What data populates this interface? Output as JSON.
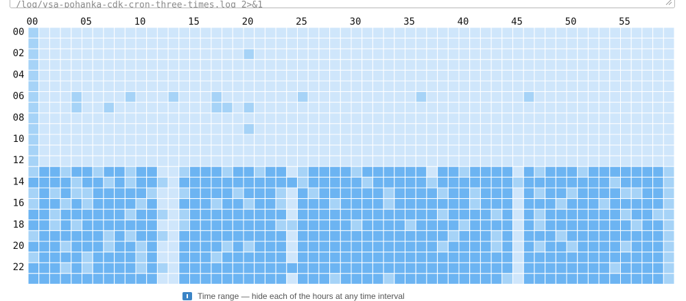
{
  "command": {
    "text": "/log/vsa-pohanka-cdk-cron-three-times.log 2>&1"
  },
  "legend_hint": {
    "text": "Time range — hide each of the hours at any time interval"
  },
  "colors": {
    "level0": "#cfe6fb",
    "level1": "#a6d3f7",
    "level2": "#6cb4f2",
    "gridline": "#ffffff"
  },
  "chart_data": {
    "type": "heatmap",
    "title": "",
    "xlabel": "",
    "ylabel": "",
    "x_tick_labels": [
      "00",
      "05",
      "10",
      "15",
      "20",
      "25",
      "30",
      "35",
      "40",
      "45",
      "50",
      "55"
    ],
    "y_tick_labels": [
      "00",
      "02",
      "04",
      "06",
      "08",
      "10",
      "12",
      "14",
      "16",
      "18",
      "20",
      "22"
    ],
    "minutes": 60,
    "hours": 24,
    "levels": [
      0,
      1,
      2
    ],
    "rows": [
      "100000000000000000000000000000000000000000000000000000000000",
      "100000000000000000000000000000000000000000000000000000000000",
      "100000000000000000001000000000000000000000000000000000000000",
      "100000000000000000000000000000000000000000000000000000000000",
      "100000000000000000000000000000000000000000000000000000000000",
      "100000000000000000000000000000000000000000000000000000000000",
      "100010000100010001000000010000000000100000000010000000000000",
      "100010010000000001101000000000000000000000000000000000000000",
      "100000000000000000000000000000000000000000000000000000000000",
      "100000000000000000001000000000000000000000000000000000000000",
      "100000000000000000000000000000000000000000000000000000000000",
      "100000000000000000000000000000000000000000000000000000000000",
      "100000000000000000000000000000000000000000000000000000000000",
      "122122122122001222122122012222122222202212222021222122222221",
      "222212212122102222222222212222212222212222222122222222122221",
      "121211222221001222212221021222222122221221222021221222211221",
      "122121222212002221221221022212222122222221222022212221222221",
      "221222222122101222222222022222222222221222212021222222212211",
      "221212222222001222222221122222122221222212222021222222221221",
      "122222212122102222222222022222222222222122212022212222222221",
      "222122212212002222121222022222222222221222212021221222212221",
      "122221222212002221222222022222222222222222222022222222222221",
      "222121222212102222222222222222222222222222222022222222122221",
      "222222222222002222222222022212222122222222221022222222222221"
    ]
  }
}
